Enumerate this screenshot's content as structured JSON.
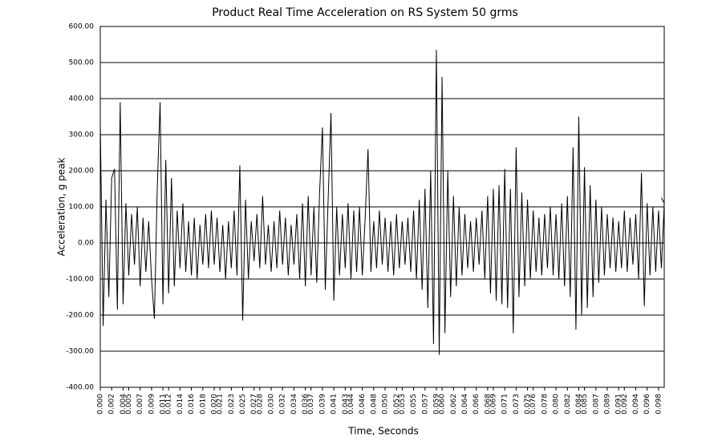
{
  "chart_data": {
    "type": "line",
    "title": "Product Real Time Acceleration on RS System 50 grms",
    "x_label": "Time, Seconds",
    "y_label": "Acceleration, g peak",
    "color": "#000000",
    "grid": true,
    "xlim": [
      0,
      0.099
    ],
    "ylim": [
      -400,
      600
    ],
    "yticks": [
      {
        "value": -400,
        "label": "-400.00"
      },
      {
        "value": -300,
        "label": "-300.00"
      },
      {
        "value": -200,
        "label": "-200.00"
      },
      {
        "value": -100,
        "label": "-100.00"
      },
      {
        "value": 0,
        "label": "0.00"
      },
      {
        "value": 100,
        "label": "100.00"
      },
      {
        "value": 200,
        "label": "200.00"
      },
      {
        "value": 300,
        "label": "300.00"
      },
      {
        "value": 400,
        "label": "400.00"
      },
      {
        "value": 500,
        "label": "500.00"
      },
      {
        "value": 600,
        "label": "600.00"
      }
    ],
    "xticks": [
      {
        "value": 0,
        "label": "0.000"
      },
      {
        "value": 0.002,
        "label": "0.002"
      },
      {
        "value": 0.004,
        "label": "0.004"
      },
      {
        "value": 0.005,
        "label": "0.005"
      },
      {
        "value": 0.007,
        "label": "0.007"
      },
      {
        "value": 0.009,
        "label": "0.009"
      },
      {
        "value": 0.011,
        "label": "0.011"
      },
      {
        "value": 0.012,
        "label": "0.012"
      },
      {
        "value": 0.014,
        "label": "0.014"
      },
      {
        "value": 0.016,
        "label": "0.016"
      },
      {
        "value": 0.018,
        "label": "0.018"
      },
      {
        "value": 0.02,
        "label": "0.020"
      },
      {
        "value": 0.021,
        "label": "0.021"
      },
      {
        "value": 0.023,
        "label": "0.023"
      },
      {
        "value": 0.025,
        "label": "0.025"
      },
      {
        "value": 0.027,
        "label": "0.027"
      },
      {
        "value": 0.028,
        "label": "0.028"
      },
      {
        "value": 0.03,
        "label": "0.030"
      },
      {
        "value": 0.032,
        "label": "0.032"
      },
      {
        "value": 0.034,
        "label": "0.034"
      },
      {
        "value": 0.036,
        "label": "0.036"
      },
      {
        "value": 0.037,
        "label": "0.037"
      },
      {
        "value": 0.039,
        "label": "0.039"
      },
      {
        "value": 0.041,
        "label": "0.041"
      },
      {
        "value": 0.043,
        "label": "0.043"
      },
      {
        "value": 0.044,
        "label": "0.044"
      },
      {
        "value": 0.046,
        "label": "0.046"
      },
      {
        "value": 0.048,
        "label": "0.048"
      },
      {
        "value": 0.05,
        "label": "0.050"
      },
      {
        "value": 0.052,
        "label": "0.052"
      },
      {
        "value": 0.053,
        "label": "0.053"
      },
      {
        "value": 0.055,
        "label": "0.055"
      },
      {
        "value": 0.057,
        "label": "0.057"
      },
      {
        "value": 0.059,
        "label": "0.059"
      },
      {
        "value": 0.06,
        "label": "0.060"
      },
      {
        "value": 0.062,
        "label": "0.062"
      },
      {
        "value": 0.064,
        "label": "0.064"
      },
      {
        "value": 0.066,
        "label": "0.066"
      },
      {
        "value": 0.068,
        "label": "0.068"
      },
      {
        "value": 0.069,
        "label": "0.069"
      },
      {
        "value": 0.071,
        "label": "0.071"
      },
      {
        "value": 0.073,
        "label": "0.073"
      },
      {
        "value": 0.075,
        "label": "0.075"
      },
      {
        "value": 0.076,
        "label": "0.076"
      },
      {
        "value": 0.078,
        "label": "0.078"
      },
      {
        "value": 0.08,
        "label": "0.080"
      },
      {
        "value": 0.082,
        "label": "0.082"
      },
      {
        "value": 0.084,
        "label": "0.084"
      },
      {
        "value": 0.085,
        "label": "0.085"
      },
      {
        "value": 0.087,
        "label": "0.087"
      },
      {
        "value": 0.089,
        "label": "0.089"
      },
      {
        "value": 0.091,
        "label": "0.091"
      },
      {
        "value": 0.092,
        "label": "0.092"
      },
      {
        "value": 0.094,
        "label": "0.094"
      },
      {
        "value": 0.096,
        "label": "0.096"
      },
      {
        "value": 0.098,
        "label": "0.098"
      }
    ],
    "x": [
      0,
      0.0005,
      0.001,
      0.0015,
      0.002,
      0.0025,
      0.003,
      0.0035,
      0.004,
      0.0045,
      0.005,
      0.0055,
      0.006,
      0.0065,
      0.007,
      0.0075,
      0.008,
      0.0085,
      0.009,
      0.0095,
      0.01,
      0.0105,
      0.011,
      0.0115,
      0.012,
      0.0125,
      0.013,
      0.0135,
      0.014,
      0.0145,
      0.015,
      0.0155,
      0.016,
      0.0165,
      0.017,
      0.0175,
      0.018,
      0.0185,
      0.019,
      0.0195,
      0.02,
      0.0205,
      0.021,
      0.0215,
      0.022,
      0.0225,
      0.023,
      0.0235,
      0.024,
      0.0245,
      0.025,
      0.0255,
      0.026,
      0.0265,
      0.027,
      0.0275,
      0.028,
      0.0285,
      0.029,
      0.0295,
      0.03,
      0.0305,
      0.031,
      0.0315,
      0.032,
      0.0325,
      0.033,
      0.0335,
      0.034,
      0.0345,
      0.035,
      0.0355,
      0.036,
      0.0365,
      0.037,
      0.0375,
      0.038,
      0.0385,
      0.039,
      0.0395,
      0.04,
      0.0405,
      0.041,
      0.0415,
      0.042,
      0.0425,
      0.043,
      0.0435,
      0.044,
      0.0445,
      0.045,
      0.0455,
      0.046,
      0.0465,
      0.047,
      0.0475,
      0.048,
      0.0485,
      0.049,
      0.0495,
      0.05,
      0.0505,
      0.051,
      0.0515,
      0.052,
      0.0525,
      0.053,
      0.0535,
      0.054,
      0.0545,
      0.055,
      0.0555,
      0.056,
      0.0565,
      0.057,
      0.0575,
      0.058,
      0.0585,
      0.059,
      0.0595,
      0.06,
      0.0605,
      0.061,
      0.0615,
      0.062,
      0.0625,
      0.063,
      0.0635,
      0.064,
      0.0645,
      0.065,
      0.0655,
      0.066,
      0.0665,
      0.067,
      0.0675,
      0.068,
      0.0685,
      0.069,
      0.0695,
      0.07,
      0.0705,
      0.071,
      0.0715,
      0.072,
      0.0725,
      0.073,
      0.0735,
      0.074,
      0.0745,
      0.075,
      0.0755,
      0.076,
      0.0765,
      0.077,
      0.0775,
      0.078,
      0.0785,
      0.079,
      0.0795,
      0.08,
      0.0805,
      0.081,
      0.0815,
      0.082,
      0.0825,
      0.083,
      0.0835,
      0.084,
      0.0845,
      0.085,
      0.0855,
      0.086,
      0.0865,
      0.087,
      0.0875,
      0.088,
      0.0885,
      0.089,
      0.0895,
      0.09,
      0.0905,
      0.091,
      0.0915,
      0.092,
      0.0925,
      0.093,
      0.0935,
      0.094,
      0.0945,
      0.095,
      0.0955,
      0.096,
      0.0965,
      0.097,
      0.0975,
      0.098,
      0.0985,
      0.099,
      0.0985
    ],
    "values": [
      330,
      -230,
      120,
      -150,
      180,
      205,
      -185,
      390,
      -170,
      110,
      -90,
      80,
      -60,
      100,
      -120,
      70,
      -80,
      60,
      -100,
      -210,
      150,
      390,
      -170,
      230,
      -140,
      180,
      -120,
      90,
      -70,
      110,
      -80,
      60,
      -90,
      70,
      -100,
      50,
      -60,
      80,
      -70,
      90,
      -60,
      70,
      -80,
      50,
      -100,
      60,
      -70,
      90,
      -90,
      215,
      -215,
      120,
      -100,
      60,
      -50,
      80,
      -70,
      130,
      -60,
      50,
      -80,
      60,
      -70,
      90,
      -60,
      70,
      -90,
      50,
      -60,
      80,
      -100,
      110,
      -120,
      130,
      -90,
      100,
      -110,
      140,
      320,
      -130,
      120,
      360,
      -160,
      100,
      -90,
      80,
      -70,
      110,
      -100,
      90,
      -80,
      100,
      -90,
      70,
      260,
      -80,
      60,
      -70,
      90,
      -60,
      70,
      -80,
      60,
      -90,
      80,
      -70,
      60,
      -60,
      70,
      -80,
      90,
      -100,
      120,
      -130,
      150,
      -180,
      200,
      -280,
      535,
      -310,
      460,
      -250,
      200,
      -150,
      130,
      -120,
      100,
      -90,
      80,
      -70,
      60,
      -80,
      70,
      -60,
      90,
      -100,
      130,
      -140,
      150,
      -160,
      160,
      -170,
      205,
      -180,
      150,
      -250,
      265,
      -150,
      140,
      -120,
      120,
      -100,
      90,
      -80,
      70,
      -90,
      80,
      -70,
      100,
      -90,
      80,
      -100,
      110,
      -120,
      130,
      -150,
      265,
      -240,
      350,
      -200,
      210,
      -180,
      160,
      -150,
      120,
      -110,
      100,
      -90,
      80,
      -70,
      70,
      -80,
      60,
      -70,
      90,
      -80,
      70,
      -60,
      80,
      -100,
      195,
      -175,
      110,
      -90,
      100,
      -80,
      90,
      -70,
      110,
      125
    ]
  }
}
